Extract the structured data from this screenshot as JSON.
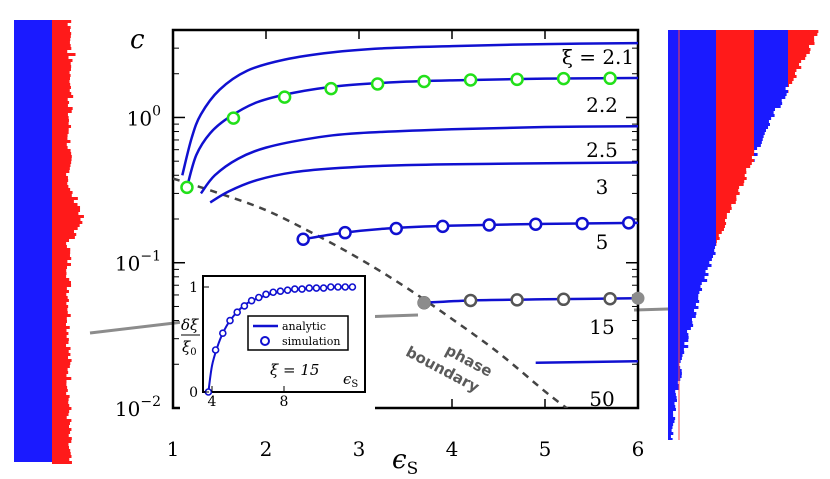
{
  "chart_data": [
    {
      "type": "line",
      "title": "",
      "xlabel": "εS",
      "ylabel": "c",
      "xlim": [
        1,
        6
      ],
      "ylim": [
        0.01,
        4
      ],
      "y_scale": "log",
      "x_ticks": [
        "1",
        "2",
        "3",
        "4",
        "5",
        "6"
      ],
      "y_ticks": [
        {
          "value": 1,
          "base": "10",
          "exp": "0"
        },
        {
          "value": 0.1,
          "base": "10",
          "exp": "−1"
        },
        {
          "value": 0.01,
          "base": "10",
          "exp": "−2"
        }
      ],
      "grid": false,
      "colors": {
        "curve": "#1010d0",
        "sim_green": "#22e01a",
        "sim_blue": "#1010d0",
        "sim_gray": "#555555",
        "boundary": "#444444",
        "gray_marker": "#8c8c8c"
      },
      "series": [
        {
          "label": "ξ = 2.1",
          "x": [
            1.1,
            1.2,
            1.3,
            1.5,
            1.8,
            2.2,
            2.7,
            3.3,
            4,
            5,
            6
          ],
          "y": [
            0.4,
            0.72,
            1.05,
            1.55,
            2.1,
            2.5,
            2.8,
            3.0,
            3.1,
            3.2,
            3.25
          ]
        },
        {
          "label": "2.2",
          "x": [
            1.15,
            1.25,
            1.4,
            1.6,
            1.9,
            2.3,
            2.8,
            3.4,
            4,
            5,
            6
          ],
          "y": [
            0.33,
            0.55,
            0.78,
            1.0,
            1.27,
            1.48,
            1.65,
            1.75,
            1.8,
            1.85,
            1.87
          ]
        },
        {
          "label": "2.5",
          "x": [
            1.3,
            1.45,
            1.7,
            2.0,
            2.5,
            3.0,
            4,
            5,
            6
          ],
          "y": [
            0.3,
            0.4,
            0.52,
            0.62,
            0.72,
            0.78,
            0.83,
            0.86,
            0.87
          ]
        },
        {
          "label": "3",
          "x": [
            1.4,
            1.6,
            1.9,
            2.3,
            2.8,
            3.5,
            4.5,
            6
          ],
          "y": [
            0.26,
            0.31,
            0.37,
            0.42,
            0.45,
            0.47,
            0.48,
            0.49
          ]
        },
        {
          "label": "5",
          "x": [
            2.4,
            2.8,
            3.3,
            4,
            5,
            6
          ],
          "y": [
            0.145,
            0.16,
            0.172,
            0.18,
            0.185,
            0.188
          ]
        },
        {
          "label": "15",
          "x": [
            3.7,
            4.2,
            5,
            6
          ],
          "y": [
            0.053,
            0.055,
            0.056,
            0.057
          ]
        },
        {
          "label": "50",
          "x": [
            4.9,
            6
          ],
          "y": [
            0.0205,
            0.021
          ]
        }
      ],
      "simulation_points": [
        {
          "series": "2.2",
          "x": [
            1.15,
            1.65,
            2.2,
            2.7,
            3.2,
            3.7,
            4.2,
            4.7,
            5.2,
            5.7
          ],
          "y": [
            0.33,
            0.99,
            1.38,
            1.58,
            1.7,
            1.77,
            1.81,
            1.83,
            1.85,
            1.86
          ]
        },
        {
          "series": "5",
          "x": [
            2.4,
            2.85,
            3.4,
            3.9,
            4.4,
            4.9,
            5.4,
            5.9
          ],
          "y": [
            0.145,
            0.161,
            0.172,
            0.178,
            0.182,
            0.184,
            0.186,
            0.188
          ]
        },
        {
          "series": "15",
          "x": [
            3.7,
            4.2,
            4.7,
            5.2,
            5.7
          ],
          "y": [
            0.053,
            0.055,
            0.0555,
            0.056,
            0.0565
          ]
        }
      ],
      "annotations": [
        "phase",
        "boundary"
      ],
      "phase_boundary": {
        "x": [
          1.0,
          1.5,
          2.0,
          2.5,
          3.0,
          3.5,
          4.0,
          4.5,
          5.0,
          5.25
        ],
        "y": [
          0.38,
          0.3,
          0.23,
          0.16,
          0.107,
          0.068,
          0.041,
          0.024,
          0.013,
          0.0098
        ]
      },
      "gray_markers": [
        {
          "x": 3.7,
          "y": 0.053
        },
        {
          "x": 6.0,
          "y": 0.057
        }
      ]
    },
    {
      "type": "line",
      "title": "",
      "ylabel": "δξ/ξ0",
      "xlabel": "εS",
      "xlim": [
        3.5,
        12.5
      ],
      "ylim": [
        0,
        1
      ],
      "x_ticks": [
        "4",
        "8"
      ],
      "y_ticks": [
        "0",
        "1"
      ],
      "annotation": "ξ = 15",
      "legend": {
        "position": "top-right",
        "entries": [
          "analytic",
          "simulation"
        ]
      },
      "series": [
        {
          "label": "analytic",
          "x": [
            3.8,
            4.0,
            4.3,
            4.6,
            5,
            5.5,
            6,
            7,
            8,
            9,
            10,
            11,
            12
          ],
          "y": [
            0.0,
            0.25,
            0.43,
            0.56,
            0.68,
            0.78,
            0.85,
            0.92,
            0.96,
            0.98,
            0.99,
            1.0,
            1.0
          ]
        },
        {
          "label": "simulation",
          "x": [
            3.8,
            4.2,
            4.6,
            5,
            5.4,
            5.8,
            6.2,
            6.6,
            7,
            7.4,
            7.8,
            8.2,
            8.6,
            9,
            9.4,
            9.8,
            10.2,
            10.6,
            11,
            11.4,
            11.8
          ],
          "y": [
            0.0,
            0.4,
            0.56,
            0.68,
            0.76,
            0.82,
            0.87,
            0.9,
            0.93,
            0.95,
            0.96,
            0.97,
            0.98,
            0.98,
            0.99,
            0.99,
            0.99,
            1.0,
            1.0,
            1.0,
            1.0
          ]
        }
      ]
    }
  ]
}
